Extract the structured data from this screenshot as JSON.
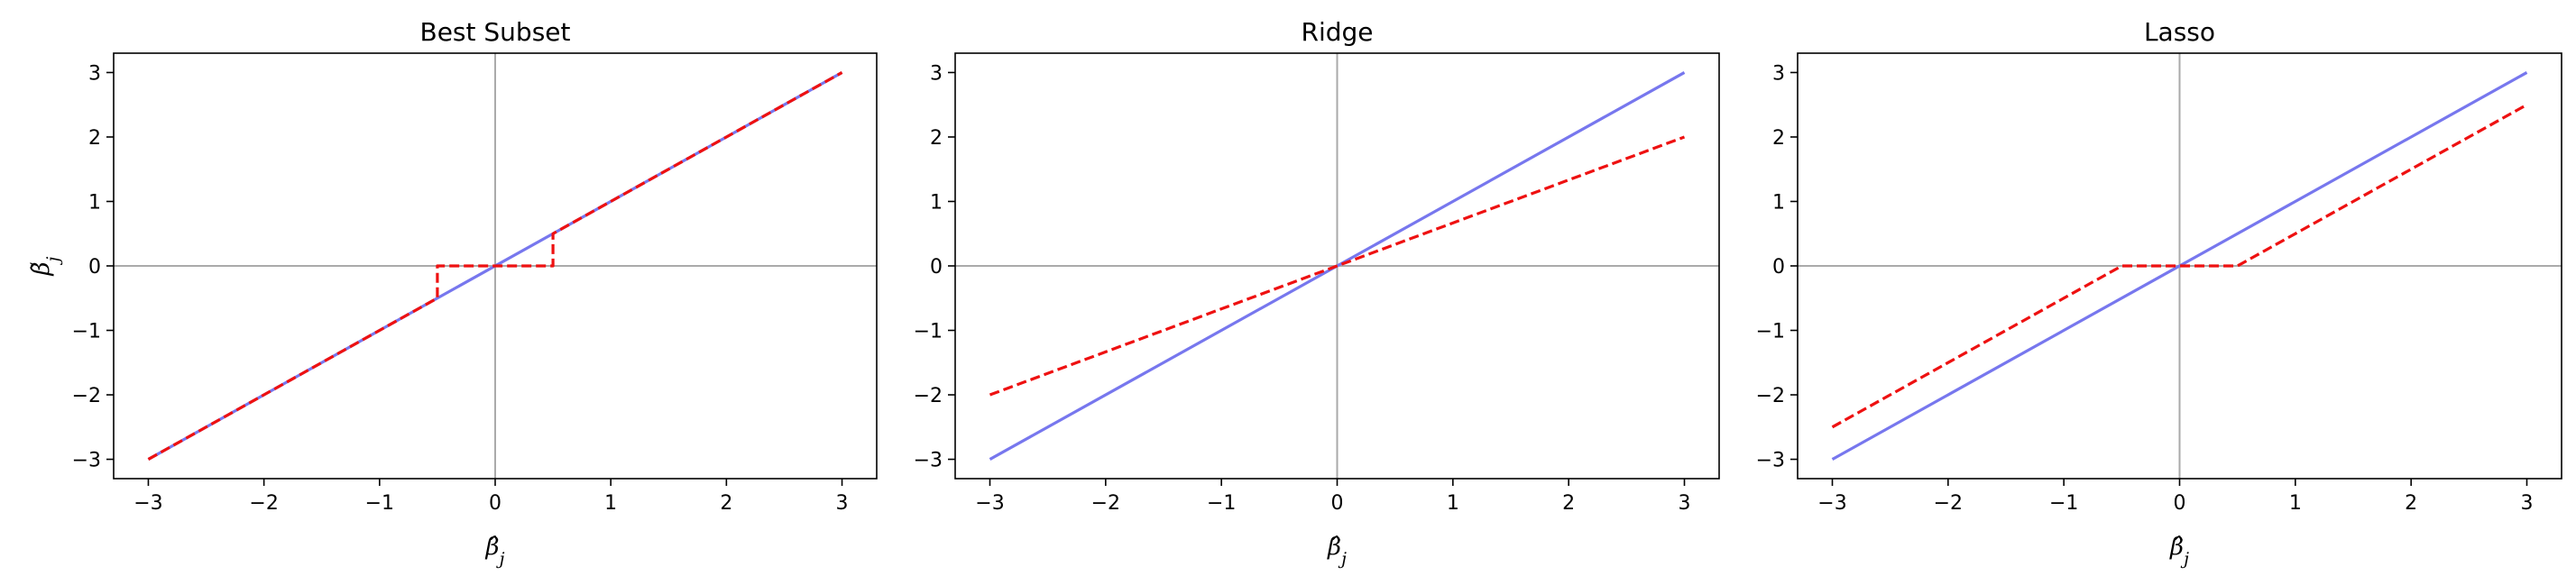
{
  "chart_data": [
    {
      "type": "line",
      "title": "Best Subset",
      "xlabel": "β̂_j",
      "ylabel": "β̃_j",
      "xlim": [
        -3.3,
        3.3
      ],
      "ylim": [
        -3.3,
        3.3
      ],
      "xticks": [
        -3,
        -2,
        -1,
        0,
        1,
        2,
        3
      ],
      "yticks": [
        -3,
        -2,
        -1,
        0,
        1,
        2,
        3
      ],
      "reference_lines": {
        "x": 0,
        "y": 0,
        "color": "#aaaaaa"
      },
      "series": [
        {
          "color": "#7777ee",
          "style": "solid",
          "x": [
            -3,
            3
          ],
          "y": [
            -3,
            3
          ]
        },
        {
          "color": "#ee1111",
          "style": "dashed",
          "x": [
            -3,
            -0.5,
            -0.5,
            0.5,
            0.5,
            3
          ],
          "y": [
            -3,
            -0.5,
            0,
            0,
            0.5,
            3
          ]
        }
      ]
    },
    {
      "type": "line",
      "title": "Ridge",
      "xlabel": "β̂_j",
      "ylabel": "",
      "xlim": [
        -3.3,
        3.3
      ],
      "ylim": [
        -3.3,
        3.3
      ],
      "xticks": [
        -3,
        -2,
        -1,
        0,
        1,
        2,
        3
      ],
      "yticks": [
        -3,
        -2,
        -1,
        0,
        1,
        2,
        3
      ],
      "reference_lines": {
        "x": 0,
        "y": 0,
        "color": "#aaaaaa"
      },
      "series": [
        {
          "color": "#7777ee",
          "style": "solid",
          "x": [
            -3,
            3
          ],
          "y": [
            -3,
            3
          ]
        },
        {
          "color": "#ee1111",
          "style": "dashed",
          "x": [
            -3,
            3
          ],
          "y": [
            -2,
            2
          ]
        }
      ]
    },
    {
      "type": "line",
      "title": "Lasso",
      "xlabel": "β̂_j",
      "ylabel": "",
      "xlim": [
        -3.3,
        3.3
      ],
      "ylim": [
        -3.3,
        3.3
      ],
      "xticks": [
        -3,
        -2,
        -1,
        0,
        1,
        2,
        3
      ],
      "yticks": [
        -3,
        -2,
        -1,
        0,
        1,
        2,
        3
      ],
      "reference_lines": {
        "x": 0,
        "y": 0,
        "color": "#aaaaaa"
      },
      "series": [
        {
          "color": "#7777ee",
          "style": "solid",
          "x": [
            -3,
            3
          ],
          "y": [
            -3,
            3
          ]
        },
        {
          "color": "#ee1111",
          "style": "dashed",
          "x": [
            -3,
            -0.5,
            0.5,
            3
          ],
          "y": [
            -2.5,
            0,
            0,
            2.5
          ]
        }
      ]
    }
  ]
}
